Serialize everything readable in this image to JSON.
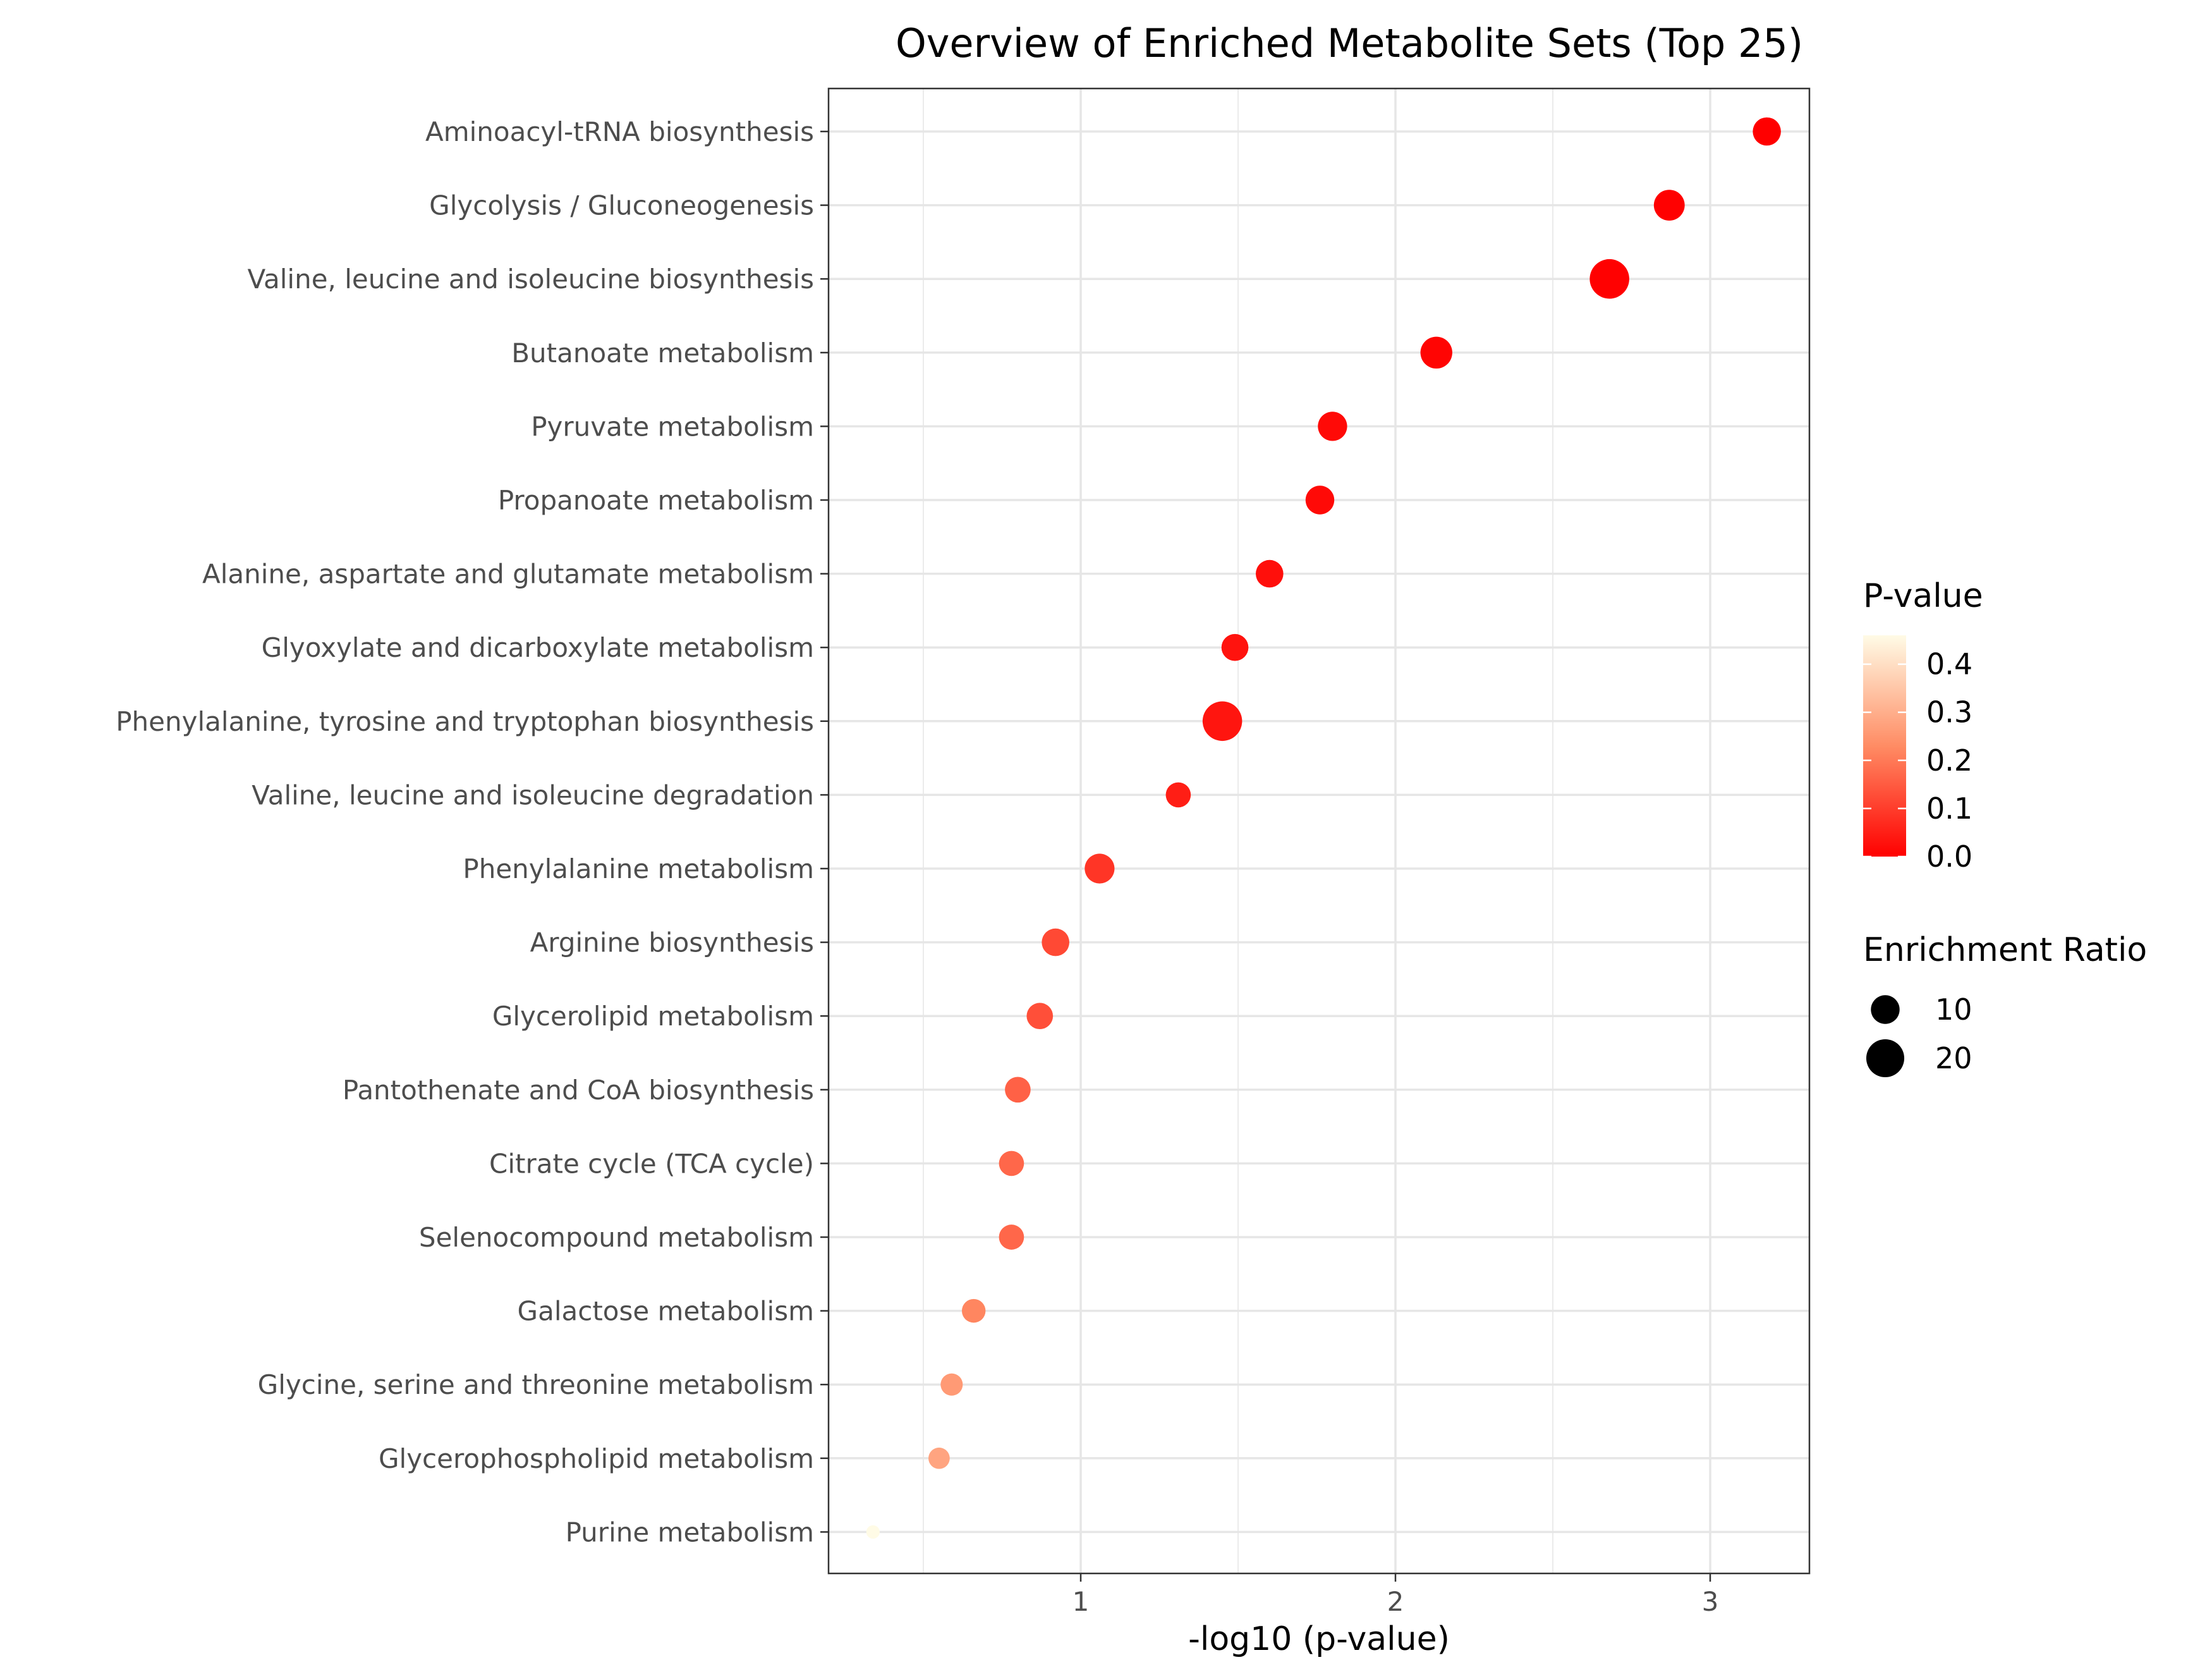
{
  "chart_data": {
    "type": "scatter",
    "title": "Overview of Enriched Metabolite Sets (Top 25)",
    "xlabel": "-log10 (p-value)",
    "ylabel": "",
    "xlim": [
      0.2,
      3.32
    ],
    "xticks": [
      1,
      2,
      3
    ],
    "grid": true,
    "categories": [
      "Aminoacyl-tRNA biosynthesis",
      "Glycolysis / Gluconeogenesis",
      "Valine, leucine and isoleucine biosynthesis",
      "Butanoate metabolism",
      "Pyruvate metabolism",
      "Propanoate metabolism",
      "Alanine, aspartate and glutamate metabolism",
      "Glyoxylate and dicarboxylate metabolism",
      "Phenylalanine, tyrosine and tryptophan biosynthesis",
      "Valine, leucine and isoleucine degradation",
      "Phenylalanine metabolism",
      "Arginine biosynthesis",
      "Glycerolipid metabolism",
      "Pantothenate and CoA biosynthesis",
      "Citrate cycle (TCA cycle)",
      "Selenocompound metabolism",
      "Galactose metabolism",
      "Glycine, serine and threonine metabolism",
      "Glycerophospholipid metabolism",
      "Purine metabolism"
    ],
    "x": [
      3.18,
      2.87,
      2.68,
      2.13,
      1.8,
      1.76,
      1.6,
      1.49,
      1.45,
      1.31,
      1.06,
      0.92,
      0.87,
      0.8,
      0.78,
      0.78,
      0.66,
      0.59,
      0.55,
      0.34
    ],
    "p_value": [
      0.0007,
      0.0013,
      0.0021,
      0.0074,
      0.016,
      0.017,
      0.025,
      0.032,
      0.035,
      0.049,
      0.087,
      0.12,
      0.13,
      0.16,
      0.17,
      0.17,
      0.22,
      0.26,
      0.28,
      0.46
    ],
    "enrichment_ratio": [
      9.5,
      12,
      22,
      13,
      10.5,
      10,
      9,
      8.5,
      22,
      7,
      11,
      9,
      8,
      7.5,
      7,
      7,
      6,
      5,
      4.5,
      1
    ],
    "legends": {
      "color": {
        "title": "P-value",
        "ticks": [
          "0.0",
          "0.1",
          "0.2",
          "0.3",
          "0.4"
        ],
        "range": [
          0,
          0.46
        ],
        "low_color": "#ff0000",
        "high_color": "#fffbe6"
      },
      "size": {
        "title": "Enrichment Ratio",
        "entries": [
          "10",
          "20"
        ],
        "values": [
          10,
          20
        ]
      }
    }
  }
}
